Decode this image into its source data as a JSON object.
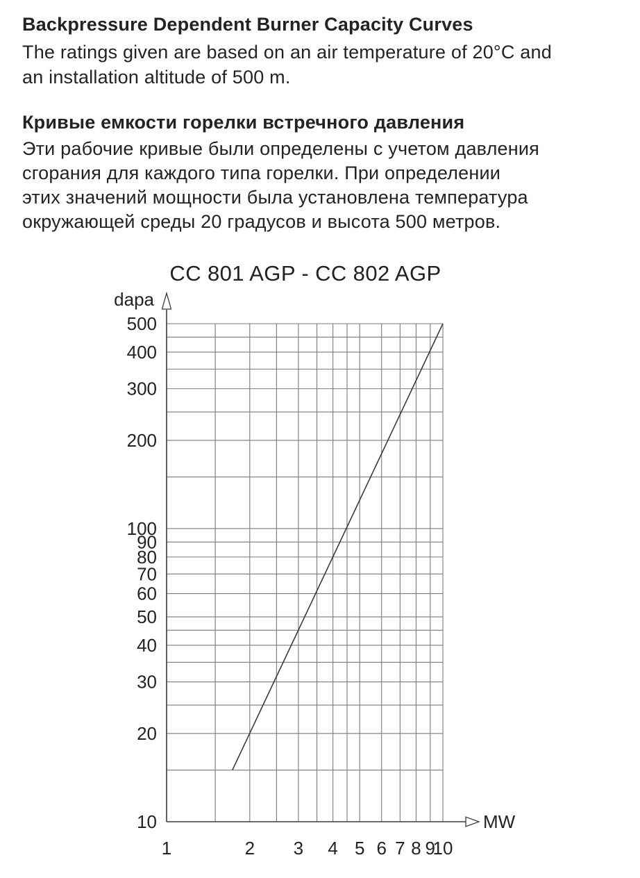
{
  "intro_en": {
    "heading": "Backpressure Dependent Burner Capacity Curves",
    "lines": [
      "The ratings given are based on an air temperature of 20°C and",
      "an installation altitude of 500 m."
    ]
  },
  "intro_ru": {
    "heading": "Кривые емкости горелки встречного давления",
    "lines": [
      "Эти рабочие кривые были определены с учетом давления",
      "сгорания для каждого типа горелки. При определении",
      "этих значений мощности была установлена температура",
      "окружающей среды 20 градусов и высота 500 метров."
    ]
  },
  "chart_data": {
    "type": "line",
    "title": "CC 801 AGP - CC 802 AGP",
    "x_axis": {
      "label": "MW",
      "scale": "log",
      "range": [
        1,
        10
      ],
      "tick_values": [
        1,
        2,
        3,
        4,
        5,
        6,
        7,
        8,
        9,
        10
      ],
      "tick_labels": [
        "1",
        "2",
        "3",
        "4",
        "5",
        "6",
        "7",
        "8",
        "9",
        "10"
      ],
      "gridlines": [
        1,
        1.5,
        2,
        2.5,
        3,
        3.5,
        4,
        4.5,
        5,
        6,
        7,
        8,
        9,
        10
      ]
    },
    "y_axis": {
      "label": "dapa",
      "scale": "log",
      "range": [
        10,
        500
      ],
      "tick_values": [
        10,
        20,
        30,
        40,
        50,
        60,
        70,
        80,
        90,
        100,
        200,
        300,
        400,
        500
      ],
      "tick_labels": [
        "10",
        "20",
        "30",
        "40",
        "50",
        "60",
        "70",
        "80",
        "90",
        "100",
        "200",
        "300",
        "400",
        "500"
      ],
      "gridlines": [
        10,
        15,
        20,
        25,
        30,
        35,
        40,
        45,
        50,
        60,
        70,
        80,
        90,
        100,
        150,
        200,
        250,
        300,
        350,
        400,
        450,
        500
      ]
    },
    "series": [
      {
        "name": "CC 801 AGP - CC 802 AGP capacity curve",
        "points": [
          [
            1.73,
            15
          ],
          [
            10,
            500
          ]
        ]
      }
    ],
    "grid": true,
    "legend": "none",
    "colors": {
      "grid": "#7a7a7a",
      "axis": "#3a3a3a",
      "curve": "#3a3a3a",
      "text": "#262223"
    }
  }
}
